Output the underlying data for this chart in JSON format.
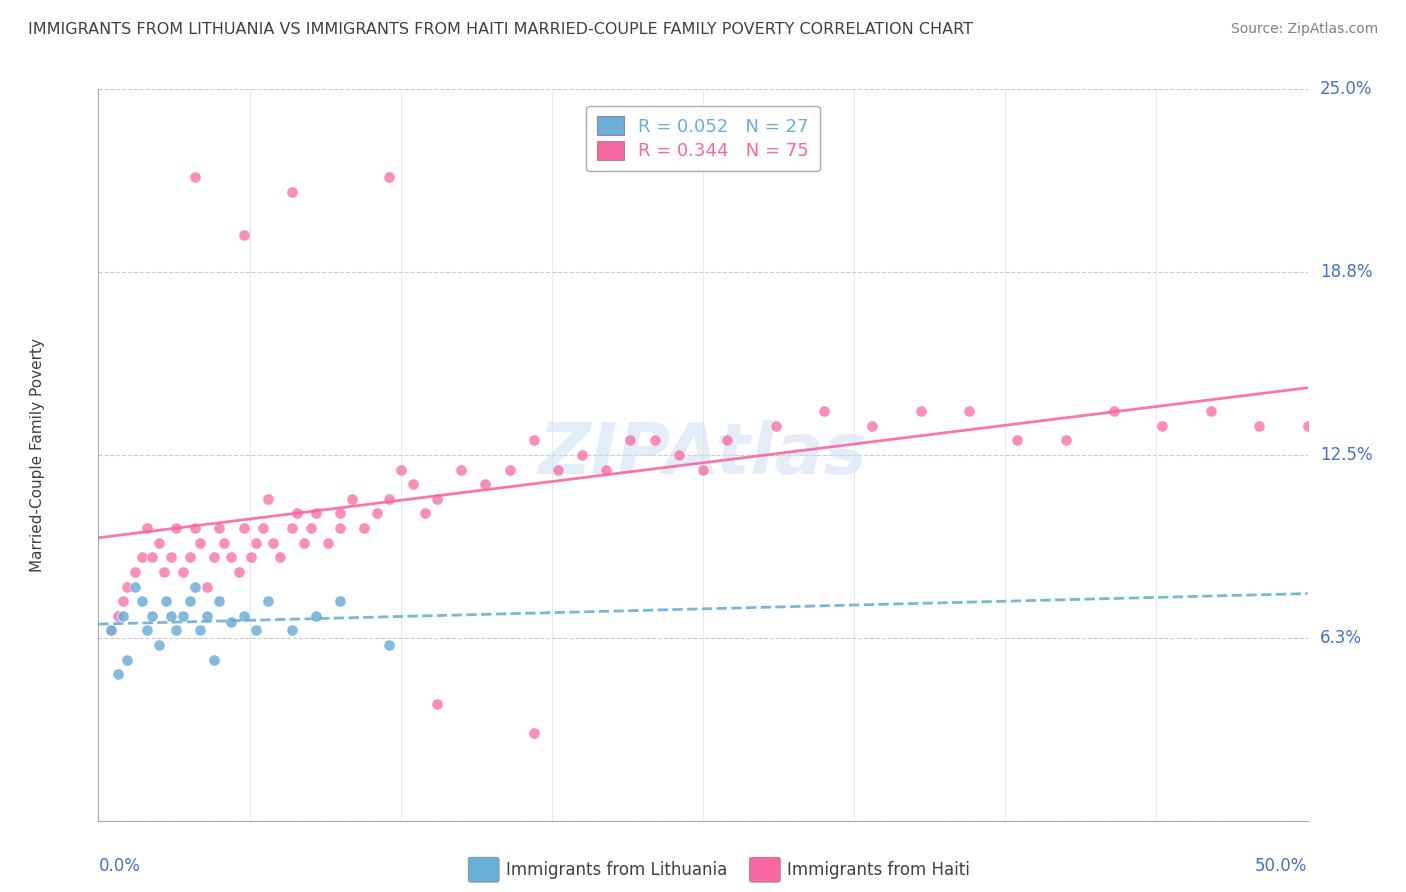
{
  "title": "IMMIGRANTS FROM LITHUANIA VS IMMIGRANTS FROM HAITI MARRIED-COUPLE FAMILY POVERTY CORRELATION CHART",
  "source": "Source: ZipAtlas.com",
  "ylabel": "Married-Couple Family Poverty",
  "color_lithuania": "#6baed6",
  "color_haiti": "#f768a1",
  "color_axis_labels": "#4472c4",
  "color_title": "#404040",
  "watermark": "ZIPAtlas",
  "legend_r1": "R = 0.052",
  "legend_n1": "N = 27",
  "legend_r2": "R = 0.344",
  "legend_n2": "N = 75",
  "xlim": [
    0.0,
    0.5
  ],
  "ylim": [
    0.0,
    0.25
  ],
  "yticks": [
    0.0,
    0.0625,
    0.125,
    0.1875,
    0.25
  ],
  "ytick_labels": [
    "",
    "6.3%",
    "12.5%",
    "18.8%",
    "25.0%"
  ],
  "lith_x": [
    0.005,
    0.008,
    0.01,
    0.012,
    0.015,
    0.018,
    0.02,
    0.022,
    0.025,
    0.028,
    0.03,
    0.032,
    0.035,
    0.038,
    0.04,
    0.042,
    0.045,
    0.048,
    0.05,
    0.055,
    0.06,
    0.065,
    0.07,
    0.08,
    0.09,
    0.1,
    0.12
  ],
  "lith_y": [
    0.065,
    0.05,
    0.07,
    0.055,
    0.08,
    0.075,
    0.065,
    0.07,
    0.06,
    0.075,
    0.07,
    0.065,
    0.07,
    0.075,
    0.08,
    0.065,
    0.07,
    0.055,
    0.075,
    0.068,
    0.07,
    0.065,
    0.075,
    0.065,
    0.07,
    0.075,
    0.06
  ],
  "haiti_x": [
    0.005,
    0.008,
    0.01,
    0.012,
    0.015,
    0.018,
    0.02,
    0.022,
    0.025,
    0.027,
    0.03,
    0.032,
    0.035,
    0.038,
    0.04,
    0.042,
    0.045,
    0.048,
    0.05,
    0.052,
    0.055,
    0.058,
    0.06,
    0.063,
    0.065,
    0.068,
    0.07,
    0.072,
    0.075,
    0.08,
    0.082,
    0.085,
    0.088,
    0.09,
    0.095,
    0.1,
    0.105,
    0.11,
    0.115,
    0.12,
    0.125,
    0.13,
    0.135,
    0.14,
    0.15,
    0.16,
    0.17,
    0.18,
    0.19,
    0.2,
    0.21,
    0.22,
    0.23,
    0.24,
    0.25,
    0.26,
    0.28,
    0.3,
    0.32,
    0.34,
    0.36,
    0.38,
    0.4,
    0.42,
    0.44,
    0.46,
    0.48,
    0.1,
    0.12,
    0.08,
    0.06,
    0.04,
    0.5,
    0.18,
    0.14
  ],
  "haiti_y": [
    0.065,
    0.07,
    0.075,
    0.08,
    0.085,
    0.09,
    0.1,
    0.09,
    0.095,
    0.085,
    0.09,
    0.1,
    0.085,
    0.09,
    0.1,
    0.095,
    0.08,
    0.09,
    0.1,
    0.095,
    0.09,
    0.085,
    0.1,
    0.09,
    0.095,
    0.1,
    0.11,
    0.095,
    0.09,
    0.1,
    0.105,
    0.095,
    0.1,
    0.105,
    0.095,
    0.1,
    0.11,
    0.1,
    0.105,
    0.11,
    0.12,
    0.115,
    0.105,
    0.11,
    0.12,
    0.115,
    0.12,
    0.13,
    0.12,
    0.125,
    0.12,
    0.13,
    0.13,
    0.125,
    0.12,
    0.13,
    0.135,
    0.14,
    0.135,
    0.14,
    0.14,
    0.13,
    0.13,
    0.14,
    0.135,
    0.14,
    0.135,
    0.105,
    0.22,
    0.215,
    0.2,
    0.22,
    0.135,
    0.03,
    0.04
  ]
}
